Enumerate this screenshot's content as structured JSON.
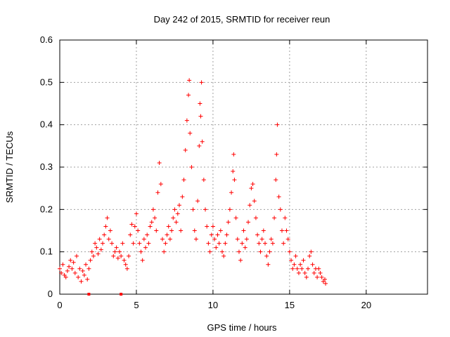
{
  "chart_data": {
    "type": "scatter",
    "title": "Day 242 of 2015, SRMTID for receiver reun",
    "xlabel": "GPS time / hours",
    "ylabel": "SRMTID / TECUs",
    "xlim": [
      0,
      24
    ],
    "ylim": [
      0,
      0.6
    ],
    "xticks": [
      0,
      5,
      10,
      15,
      20
    ],
    "yticks": [
      0,
      0.1,
      0.2,
      0.3,
      0.4,
      0.5,
      0.6
    ],
    "xtick_labels": [
      "0",
      "5",
      "10",
      "15",
      "20"
    ],
    "ytick_labels": [
      "0",
      "0.1",
      "0.2",
      "0.3",
      "0.4",
      "0.5",
      "0.6"
    ],
    "grid": true,
    "marker": "+",
    "series_color": "#ff0000",
    "points": [
      [
        0.0,
        0.06
      ],
      [
        0.1,
        0.05
      ],
      [
        0.2,
        0.07
      ],
      [
        0.3,
        0.045
      ],
      [
        0.4,
        0.04
      ],
      [
        0.5,
        0.055
      ],
      [
        0.6,
        0.065
      ],
      [
        0.7,
        0.08
      ],
      [
        0.8,
        0.06
      ],
      [
        0.9,
        0.075
      ],
      [
        1.0,
        0.05
      ],
      [
        1.1,
        0.09
      ],
      [
        1.2,
        0.04
      ],
      [
        1.3,
        0.06
      ],
      [
        1.4,
        0.03
      ],
      [
        1.5,
        0.055
      ],
      [
        1.6,
        0.045
      ],
      [
        1.7,
        0.07
      ],
      [
        1.8,
        0.035
      ],
      [
        1.9,
        0.06
      ],
      [
        2.0,
        0.08
      ],
      [
        2.1,
        0.1
      ],
      [
        2.2,
        0.09
      ],
      [
        2.3,
        0.12
      ],
      [
        2.4,
        0.11
      ],
      [
        2.5,
        0.095
      ],
      [
        2.6,
        0.13
      ],
      [
        2.7,
        0.105
      ],
      [
        2.8,
        0.12
      ],
      [
        2.9,
        0.14
      ],
      [
        3.0,
        0.16
      ],
      [
        3.1,
        0.18
      ],
      [
        3.2,
        0.13
      ],
      [
        3.3,
        0.15
      ],
      [
        3.4,
        0.12
      ],
      [
        3.5,
        0.09
      ],
      [
        3.6,
        0.1
      ],
      [
        3.7,
        0.11
      ],
      [
        3.8,
        0.085
      ],
      [
        3.9,
        0.1
      ],
      [
        4.0,
        0.09
      ],
      [
        4.1,
        0.12
      ],
      [
        4.2,
        0.08
      ],
      [
        4.3,
        0.07
      ],
      [
        4.4,
        0.06
      ],
      [
        4.5,
        0.09
      ],
      [
        4.6,
        0.14
      ],
      [
        4.7,
        0.165
      ],
      [
        4.8,
        0.12
      ],
      [
        4.9,
        0.16
      ],
      [
        5.0,
        0.19
      ],
      [
        5.1,
        0.15
      ],
      [
        5.2,
        0.12
      ],
      [
        5.3,
        0.1
      ],
      [
        5.4,
        0.08
      ],
      [
        5.5,
        0.13
      ],
      [
        5.6,
        0.11
      ],
      [
        5.7,
        0.14
      ],
      [
        5.8,
        0.12
      ],
      [
        5.9,
        0.16
      ],
      [
        6.0,
        0.17
      ],
      [
        6.1,
        0.2
      ],
      [
        6.2,
        0.18
      ],
      [
        6.3,
        0.15
      ],
      [
        6.4,
        0.24
      ],
      [
        6.5,
        0.31
      ],
      [
        6.6,
        0.26
      ],
      [
        6.7,
        0.13
      ],
      [
        6.8,
        0.1
      ],
      [
        6.9,
        0.12
      ],
      [
        7.0,
        0.14
      ],
      [
        7.1,
        0.16
      ],
      [
        7.2,
        0.13
      ],
      [
        7.3,
        0.15
      ],
      [
        7.4,
        0.18
      ],
      [
        7.5,
        0.2
      ],
      [
        7.6,
        0.17
      ],
      [
        7.7,
        0.19
      ],
      [
        7.8,
        0.21
      ],
      [
        7.9,
        0.15
      ],
      [
        8.0,
        0.23
      ],
      [
        8.1,
        0.27
      ],
      [
        8.2,
        0.34
      ],
      [
        8.3,
        0.41
      ],
      [
        8.4,
        0.47
      ],
      [
        8.45,
        0.505
      ],
      [
        8.5,
        0.38
      ],
      [
        8.6,
        0.3
      ],
      [
        8.7,
        0.2
      ],
      [
        8.8,
        0.15
      ],
      [
        8.9,
        0.13
      ],
      [
        9.0,
        0.22
      ],
      [
        9.1,
        0.35
      ],
      [
        9.15,
        0.45
      ],
      [
        9.2,
        0.42
      ],
      [
        9.25,
        0.5
      ],
      [
        9.3,
        0.36
      ],
      [
        9.4,
        0.27
      ],
      [
        9.5,
        0.2
      ],
      [
        9.6,
        0.16
      ],
      [
        9.7,
        0.12
      ],
      [
        9.8,
        0.1
      ],
      [
        9.9,
        0.14
      ],
      [
        10.0,
        0.16
      ],
      [
        10.1,
        0.13
      ],
      [
        10.2,
        0.11
      ],
      [
        10.3,
        0.14
      ],
      [
        10.4,
        0.12
      ],
      [
        10.5,
        0.15
      ],
      [
        10.6,
        0.1
      ],
      [
        10.7,
        0.09
      ],
      [
        10.8,
        0.12
      ],
      [
        10.9,
        0.14
      ],
      [
        11.0,
        0.17
      ],
      [
        11.1,
        0.2
      ],
      [
        11.2,
        0.24
      ],
      [
        11.3,
        0.29
      ],
      [
        11.35,
        0.33
      ],
      [
        11.4,
        0.27
      ],
      [
        11.5,
        0.18
      ],
      [
        11.6,
        0.13
      ],
      [
        11.7,
        0.1
      ],
      [
        11.8,
        0.08
      ],
      [
        11.9,
        0.12
      ],
      [
        12.0,
        0.15
      ],
      [
        12.1,
        0.11
      ],
      [
        12.2,
        0.13
      ],
      [
        12.3,
        0.17
      ],
      [
        12.4,
        0.21
      ],
      [
        12.5,
        0.25
      ],
      [
        12.6,
        0.26
      ],
      [
        12.7,
        0.22
      ],
      [
        12.8,
        0.18
      ],
      [
        12.9,
        0.14
      ],
      [
        13.0,
        0.12
      ],
      [
        13.1,
        0.1
      ],
      [
        13.2,
        0.13
      ],
      [
        13.3,
        0.15
      ],
      [
        13.4,
        0.12
      ],
      [
        13.5,
        0.09
      ],
      [
        13.6,
        0.07
      ],
      [
        13.7,
        0.1
      ],
      [
        13.8,
        0.13
      ],
      [
        13.9,
        0.12
      ],
      [
        14.0,
        0.18
      ],
      [
        14.1,
        0.27
      ],
      [
        14.15,
        0.33
      ],
      [
        14.2,
        0.4
      ],
      [
        14.3,
        0.23
      ],
      [
        14.4,
        0.2
      ],
      [
        14.5,
        0.15
      ],
      [
        14.6,
        0.12
      ],
      [
        14.7,
        0.18
      ],
      [
        14.8,
        0.15
      ],
      [
        14.9,
        0.13
      ],
      [
        15.0,
        0.1
      ],
      [
        15.1,
        0.08
      ],
      [
        15.2,
        0.06
      ],
      [
        15.3,
        0.07
      ],
      [
        15.4,
        0.09
      ],
      [
        15.5,
        0.06
      ],
      [
        15.6,
        0.05
      ],
      [
        15.7,
        0.07
      ],
      [
        15.8,
        0.06
      ],
      [
        15.9,
        0.08
      ],
      [
        16.0,
        0.05
      ],
      [
        16.1,
        0.04
      ],
      [
        16.2,
        0.06
      ],
      [
        16.3,
        0.09
      ],
      [
        16.4,
        0.1
      ],
      [
        16.5,
        0.07
      ],
      [
        16.6,
        0.05
      ],
      [
        16.7,
        0.06
      ],
      [
        16.8,
        0.04
      ],
      [
        16.9,
        0.06
      ],
      [
        17.0,
        0.05
      ],
      [
        17.1,
        0.04
      ],
      [
        17.2,
        0.03
      ],
      [
        17.3,
        0.035
      ],
      [
        17.35,
        0.025
      ]
    ],
    "axis_markers_x": [
      1.9,
      4.0
    ]
  }
}
